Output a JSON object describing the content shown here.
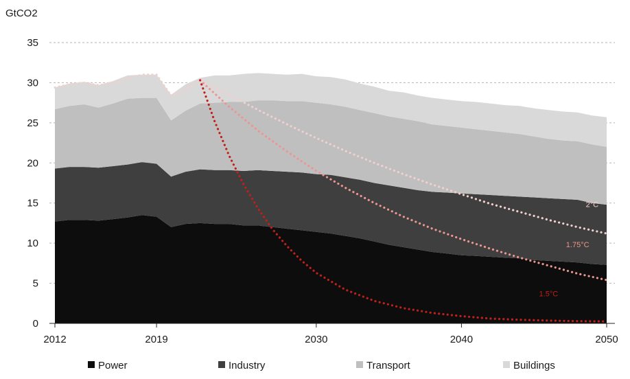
{
  "chart_data": {
    "type": "area",
    "ylabel": "GtCO2",
    "ylim": [
      0,
      35
    ],
    "yticks": [
      0,
      5,
      10,
      15,
      20,
      25,
      30,
      35
    ],
    "xlim": [
      2012,
      2050
    ],
    "xtick_labels": [
      "2012",
      "2019",
      "2030",
      "2040",
      "2050"
    ],
    "xtick_values": [
      2012,
      2019,
      2030,
      2040,
      2050
    ],
    "grid": true,
    "legend_position": "bottom",
    "stacked": true,
    "x": [
      2012,
      2013,
      2014,
      2015,
      2016,
      2017,
      2018,
      2019,
      2020,
      2021,
      2022,
      2023,
      2024,
      2025,
      2026,
      2027,
      2028,
      2029,
      2030,
      2031,
      2032,
      2033,
      2034,
      2035,
      2036,
      2037,
      2038,
      2039,
      2040,
      2041,
      2042,
      2043,
      2044,
      2045,
      2046,
      2047,
      2048,
      2049,
      2050
    ],
    "series": [
      {
        "name": "Power",
        "color": "#0d0d0d",
        "values": [
          12.7,
          12.9,
          12.9,
          12.8,
          13.0,
          13.2,
          13.5,
          13.3,
          12.0,
          12.4,
          12.5,
          12.4,
          12.4,
          12.2,
          12.2,
          12.0,
          11.8,
          11.6,
          11.4,
          11.2,
          10.9,
          10.6,
          10.2,
          9.8,
          9.5,
          9.2,
          8.9,
          8.7,
          8.5,
          8.4,
          8.3,
          8.2,
          8.1,
          7.9,
          7.8,
          7.7,
          7.6,
          7.4,
          7.3
        ]
      },
      {
        "name": "Industry",
        "color": "#3f3f3f",
        "values": [
          6.6,
          6.6,
          6.6,
          6.6,
          6.6,
          6.6,
          6.6,
          6.6,
          6.3,
          6.5,
          6.7,
          6.7,
          6.7,
          6.8,
          6.9,
          7.0,
          7.1,
          7.2,
          7.2,
          7.3,
          7.3,
          7.3,
          7.3,
          7.4,
          7.4,
          7.4,
          7.5,
          7.6,
          7.7,
          7.7,
          7.7,
          7.7,
          7.7,
          7.8,
          7.8,
          7.8,
          7.8,
          7.6,
          7.5
        ]
      },
      {
        "name": "Transport",
        "color": "#bfbfbf",
        "values": [
          7.4,
          7.6,
          7.8,
          7.5,
          7.8,
          8.2,
          8.0,
          8.2,
          7.0,
          7.6,
          8.2,
          8.4,
          8.5,
          8.6,
          8.7,
          8.8,
          8.8,
          8.9,
          8.9,
          8.8,
          8.8,
          8.7,
          8.7,
          8.6,
          8.6,
          8.6,
          8.4,
          8.3,
          8.2,
          8.1,
          8.0,
          7.9,
          7.8,
          7.6,
          7.4,
          7.3,
          7.3,
          7.3,
          7.2
        ]
      },
      {
        "name": "Buildings",
        "color": "#d9d9d9",
        "values": [
          2.7,
          2.8,
          2.8,
          2.8,
          2.8,
          2.9,
          2.9,
          2.9,
          3.2,
          3.3,
          3.2,
          3.4,
          3.3,
          3.5,
          3.4,
          3.3,
          3.3,
          3.4,
          3.3,
          3.4,
          3.4,
          3.3,
          3.3,
          3.2,
          3.3,
          3.2,
          3.3,
          3.3,
          3.3,
          3.4,
          3.4,
          3.4,
          3.5,
          3.5,
          3.6,
          3.6,
          3.6,
          3.6,
          3.7
        ]
      }
    ],
    "pathways": [
      {
        "name": "2°C",
        "label": "2°C",
        "color": "#f2d0d0",
        "x": [
          2012,
          2013,
          2014,
          2015,
          2016,
          2017,
          2018,
          2019,
          2020,
          2021,
          2022,
          2024,
          2026,
          2028,
          2030,
          2032,
          2034,
          2036,
          2038,
          2040,
          2042,
          2044,
          2046,
          2048,
          2050
        ],
        "values": [
          29.4,
          29.8,
          30.0,
          29.7,
          29.9,
          30.5,
          31.0,
          31.0,
          28.4,
          29.2,
          30.3,
          28.5,
          26.6,
          24.8,
          23.1,
          21.5,
          20.0,
          18.6,
          17.3,
          16.1,
          14.9,
          13.9,
          12.9,
          12.0,
          11.2
        ]
      },
      {
        "name": "1.75°C",
        "label": "1.75°C",
        "color": "#ec9690",
        "x": [
          2022,
          2024,
          2026,
          2028,
          2030,
          2032,
          2034,
          2036,
          2038,
          2040,
          2042,
          2044,
          2046,
          2048,
          2050
        ],
        "values": [
          30.3,
          27.0,
          24.0,
          21.4,
          19.0,
          16.9,
          15.0,
          13.3,
          11.8,
          10.5,
          9.3,
          8.2,
          7.2,
          6.2,
          5.4
        ]
      },
      {
        "name": "1.5°C",
        "label": "1.5°C",
        "color": "#c0201a",
        "x": [
          2022,
          2023,
          2024,
          2025,
          2026,
          2027,
          2028,
          2029,
          2030,
          2032,
          2034,
          2036,
          2038,
          2040,
          2042,
          2044,
          2046,
          2048,
          2050
        ],
        "values": [
          30.3,
          25.2,
          20.9,
          17.3,
          14.3,
          11.7,
          9.6,
          7.8,
          6.3,
          4.2,
          2.8,
          1.9,
          1.3,
          0.9,
          0.6,
          0.45,
          0.35,
          0.28,
          0.25
        ]
      }
    ]
  }
}
